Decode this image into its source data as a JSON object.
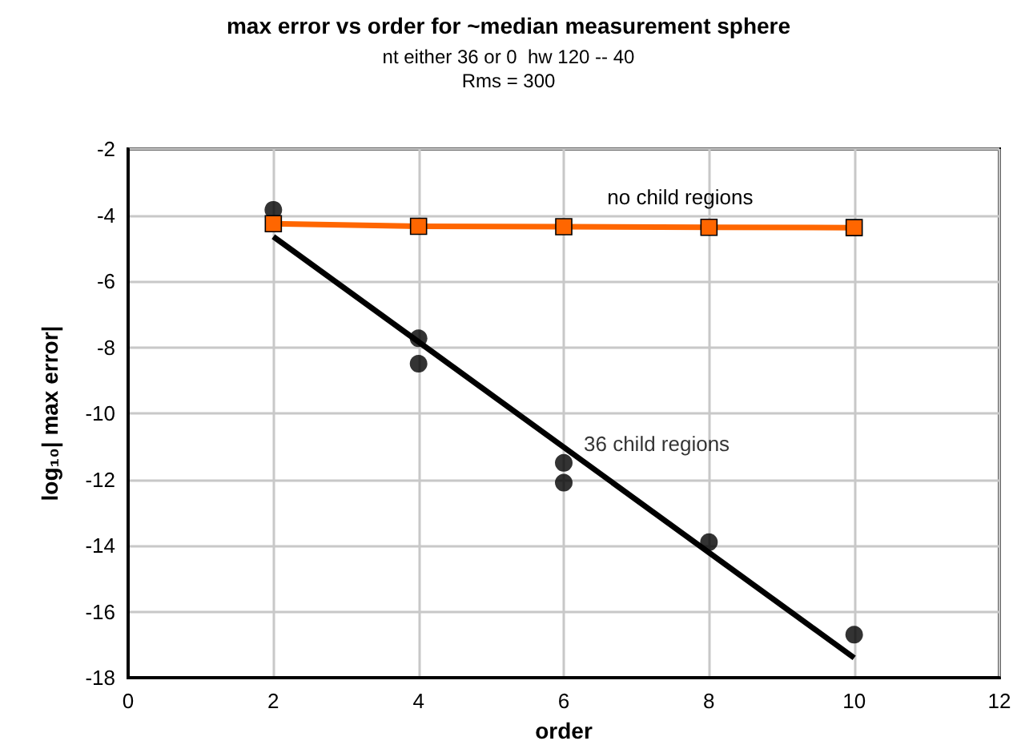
{
  "chart_data": {
    "type": "scatter",
    "title": "max error vs order for ~median measurement sphere",
    "subtitle": "nt either 36 or 0  hw 120 -- 40\nRms = 300",
    "xlabel": "order",
    "ylabel": "log₁₀| max error|",
    "xlim": [
      0,
      12
    ],
    "xticks": [
      0,
      2,
      4,
      6,
      8,
      10,
      12
    ],
    "ylim": [
      -18,
      -2
    ],
    "yticks": [
      -18,
      -16,
      -14,
      -12,
      -10,
      -8,
      -6,
      -4,
      -2
    ],
    "grid": true,
    "series": [
      {
        "type": "line",
        "color": "#000000",
        "marker": "none",
        "line_style": "solid",
        "x": [
          2,
          10
        ],
        "values": [
          -4.65,
          -17.4
        ]
      },
      {
        "name": "36 child regions",
        "color": "#000000",
        "marker": "circle",
        "x": [
          2,
          4,
          4,
          6,
          6,
          8,
          10
        ],
        "values": [
          -3.84,
          -7.73,
          -8.5,
          -11.5,
          -12.1,
          -13.9,
          -16.7
        ]
      },
      {
        "type": "line",
        "name": "no child regions",
        "color": "#ff6600",
        "marker": "square",
        "line_style": "solid",
        "x": [
          2,
          4,
          6,
          8,
          10
        ],
        "values": [
          -4.26,
          -4.34,
          -4.35,
          -4.37,
          -4.38
        ]
      }
    ]
  }
}
